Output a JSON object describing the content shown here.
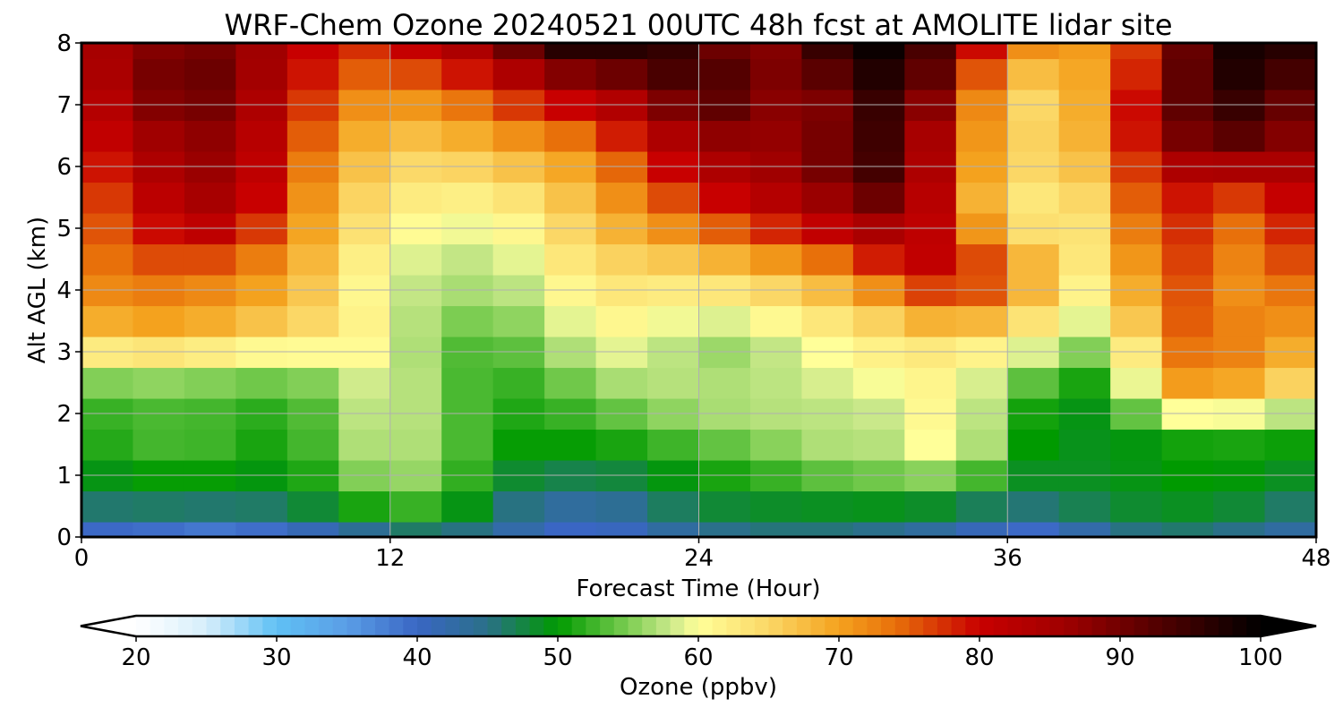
{
  "chart_data": {
    "type": "heatmap",
    "title": "WRF-Chem Ozone  20240521 00UTC 48h fcst at AMOLITE lidar site",
    "xlabel": "Forecast Time (Hour)",
    "ylabel": "Alt AGL (km)",
    "xlim": [
      0,
      48
    ],
    "ylim": [
      0,
      8
    ],
    "x_ticks": [
      "0",
      "12",
      "24",
      "36",
      "48"
    ],
    "y_ticks": [
      "0",
      "1",
      "2",
      "3",
      "4",
      "5",
      "6",
      "7",
      "8"
    ],
    "grid": true,
    "x": [
      0,
      2,
      4,
      6,
      8,
      10,
      12,
      14,
      16,
      18,
      20,
      22,
      24,
      26,
      28,
      30,
      32,
      34,
      36,
      38,
      40,
      42,
      44,
      46,
      48
    ],
    "y": [
      0,
      0.25,
      0.75,
      1.25,
      1.75,
      2.25,
      2.75,
      3.25,
      3.75,
      4.25,
      4.75,
      5.25,
      5.75,
      6.25,
      6.75,
      7.25,
      7.75,
      8
    ],
    "z_units": "ppbv",
    "z": [
      [
        35,
        35,
        33,
        33,
        35,
        38,
        42,
        44,
        42,
        40,
        38,
        40,
        42,
        44,
        44,
        44,
        42,
        40,
        36,
        36,
        42,
        44,
        44,
        42,
        40
      ],
      [
        44,
        45,
        44,
        44,
        45,
        47,
        49,
        50,
        45,
        42,
        40,
        44,
        46,
        47,
        47,
        47,
        46,
        45,
        43,
        44,
        47,
        48,
        48,
        46,
        44
      ],
      [
        47,
        48,
        48,
        48,
        48,
        52,
        56,
        54,
        48,
        46,
        45,
        47,
        49,
        50,
        50,
        51,
        52,
        51,
        48,
        48,
        49,
        49,
        50,
        48,
        47
      ],
      [
        50,
        52,
        53,
        52,
        50,
        55,
        58,
        56,
        50,
        49,
        49,
        50,
        52,
        53,
        56,
        58,
        57,
        62,
        50,
        49,
        49,
        50,
        51,
        50,
        50
      ],
      [
        51,
        53,
        53,
        52,
        50,
        56,
        59,
        55,
        51,
        51,
        52,
        53,
        55,
        56,
        57,
        57,
        57,
        64,
        52,
        49,
        49,
        50,
        52,
        51,
        51
      ],
      [
        52,
        53,
        53,
        53,
        52,
        55,
        60,
        55,
        51,
        52,
        54,
        57,
        58,
        58,
        58,
        58,
        60,
        62,
        52,
        50,
        49,
        68,
        70,
        66,
        62
      ],
      [
        57,
        59,
        58,
        57,
        56,
        58,
        60,
        54,
        52,
        54,
        58,
        58,
        56,
        56,
        58,
        60,
        61,
        62,
        58,
        55,
        50,
        70,
        74,
        68,
        66
      ],
      [
        66,
        68,
        68,
        66,
        64,
        64,
        60,
        54,
        53,
        56,
        60,
        60,
        56,
        57,
        60,
        62,
        64,
        64,
        62,
        60,
        56,
        74,
        76,
        72,
        70
      ],
      [
        70,
        72,
        72,
        70,
        68,
        64,
        58,
        57,
        56,
        58,
        62,
        62,
        60,
        62,
        64,
        66,
        70,
        76,
        70,
        62,
        58,
        78,
        72,
        70,
        74
      ],
      [
        72,
        74,
        74,
        72,
        70,
        64,
        58,
        58,
        56,
        60,
        64,
        64,
        64,
        66,
        68,
        72,
        78,
        82,
        74,
        66,
        60,
        80,
        72,
        72,
        78
      ],
      [
        74,
        76,
        80,
        78,
        72,
        66,
        60,
        59,
        58,
        62,
        66,
        68,
        70,
        74,
        76,
        80,
        84,
        80,
        68,
        64,
        62,
        82,
        72,
        74,
        80
      ],
      [
        74,
        78,
        84,
        84,
        74,
        67,
        62,
        61,
        60,
        64,
        68,
        72,
        76,
        80,
        82,
        86,
        88,
        74,
        62,
        62,
        66,
        82,
        74,
        76,
        82
      ],
      [
        76,
        80,
        86,
        86,
        76,
        68,
        64,
        63,
        64,
        66,
        70,
        76,
        80,
        84,
        86,
        92,
        96,
        72,
        66,
        62,
        70,
        82,
        78,
        80,
        84
      ],
      [
        78,
        82,
        88,
        86,
        78,
        70,
        66,
        66,
        68,
        70,
        72,
        80,
        84,
        88,
        86,
        94,
        94,
        74,
        68,
        64,
        72,
        84,
        92,
        88,
        86
      ],
      [
        80,
        84,
        90,
        86,
        80,
        72,
        68,
        70,
        72,
        76,
        78,
        84,
        88,
        90,
        84,
        94,
        96,
        76,
        66,
        64,
        74,
        86,
        96,
        92,
        88
      ],
      [
        82,
        86,
        94,
        88,
        82,
        74,
        72,
        74,
        78,
        82,
        84,
        88,
        96,
        92,
        86,
        92,
        98,
        82,
        64,
        66,
        72,
        86,
        98,
        94,
        90
      ],
      [
        84,
        86,
        92,
        88,
        84,
        76,
        78,
        80,
        84,
        92,
        96,
        94,
        96,
        86,
        92,
        98,
        100,
        86,
        70,
        70,
        70,
        84,
        98,
        98,
        94
      ],
      [
        84,
        86,
        90,
        88,
        84,
        76,
        80,
        84,
        88,
        98,
        100,
        96,
        96,
        84,
        92,
        98,
        100,
        88,
        74,
        72,
        70,
        84,
        98,
        98,
        96
      ]
    ],
    "colorbar": {
      "label": "Ozone  (ppbv)",
      "ticks": [
        "20",
        "30",
        "40",
        "50",
        "60",
        "70",
        "80",
        "90",
        "100"
      ],
      "min": 20,
      "max": 100,
      "extend": "both",
      "stops": [
        {
          "v": 20,
          "c": "#ffffff"
        },
        {
          "v": 25,
          "c": "#d6eefb"
        },
        {
          "v": 30,
          "c": "#5fc0f4"
        },
        {
          "v": 35,
          "c": "#5a9ee6"
        },
        {
          "v": 40,
          "c": "#3a66c4"
        },
        {
          "v": 45,
          "c": "#2a7088"
        },
        {
          "v": 50,
          "c": "#009a00"
        },
        {
          "v": 55,
          "c": "#7ccd52"
        },
        {
          "v": 58,
          "c": "#c9e88a"
        },
        {
          "v": 60,
          "c": "#ffff99"
        },
        {
          "v": 65,
          "c": "#fbd766"
        },
        {
          "v": 70,
          "c": "#f4a21e"
        },
        {
          "v": 74,
          "c": "#e8700a"
        },
        {
          "v": 80,
          "c": "#c80000"
        },
        {
          "v": 86,
          "c": "#a00000"
        },
        {
          "v": 92,
          "c": "#5a0000"
        },
        {
          "v": 100,
          "c": "#000000"
        }
      ]
    }
  }
}
